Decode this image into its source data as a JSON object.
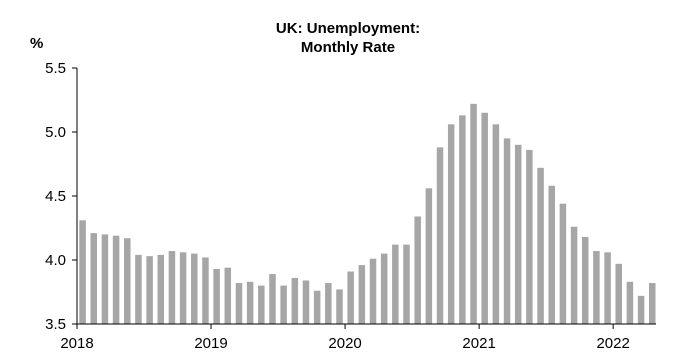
{
  "chart_data": {
    "type": "bar",
    "title": "UK: Unemployment:",
    "subtitle": "Monthly Rate",
    "ylabel": "%",
    "xlabel": "",
    "ylim": [
      3.5,
      5.5
    ],
    "yticks": [
      "5.5",
      "5.0",
      "4.5",
      "4.0",
      "3.5"
    ],
    "ytick_values": [
      5.5,
      5.0,
      4.5,
      4.0,
      3.5
    ],
    "xticks": [
      "2018",
      "2019",
      "2020",
      "2021",
      "2022"
    ],
    "start_year": 2018,
    "grid": false,
    "legend": "none",
    "colors": {
      "bar": "#a6a6a6",
      "axis": "#000000"
    },
    "values": [
      4.31,
      4.21,
      4.2,
      4.19,
      4.17,
      4.04,
      4.03,
      4.04,
      4.07,
      4.06,
      4.05,
      4.02,
      3.93,
      3.94,
      3.82,
      3.83,
      3.8,
      3.89,
      3.8,
      3.86,
      3.84,
      3.76,
      3.82,
      3.77,
      3.91,
      3.96,
      4.01,
      4.05,
      4.12,
      4.12,
      4.34,
      4.56,
      4.88,
      5.06,
      5.13,
      5.22,
      5.15,
      5.06,
      4.95,
      4.9,
      4.86,
      4.72,
      4.58,
      4.44,
      4.26,
      4.18,
      4.07,
      4.06,
      3.97,
      3.83,
      3.72,
      3.82
    ]
  }
}
